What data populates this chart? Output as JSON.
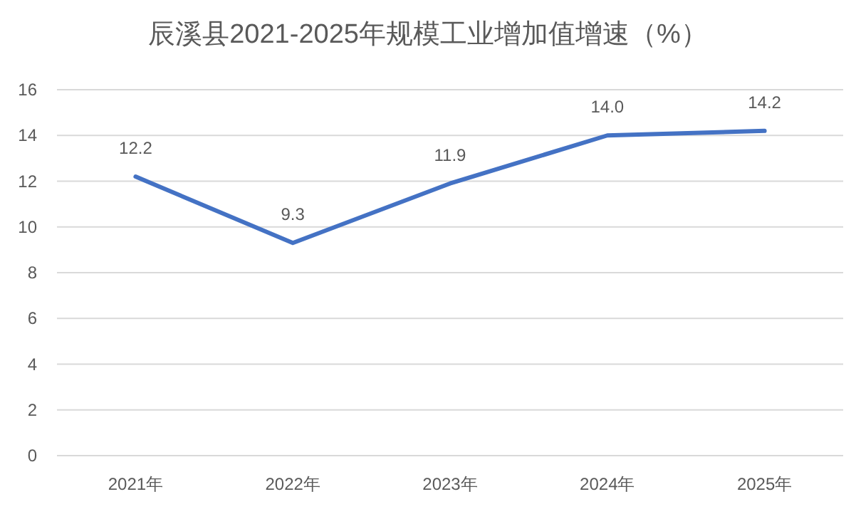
{
  "chart_data": {
    "type": "line",
    "title": "辰溪县2021-2025年规模工业增加值增速（%）",
    "categories": [
      "2021年",
      "2022年",
      "2023年",
      "2024年",
      "2025年"
    ],
    "values": [
      12.2,
      9.3,
      11.9,
      14.0,
      14.2
    ],
    "value_labels": [
      "12.2",
      "9.3",
      "11.9",
      "14.0",
      "14.2"
    ],
    "color": "#4472c4",
    "ylim": [
      0,
      16
    ],
    "yticks": [
      0,
      2,
      4,
      6,
      8,
      10,
      12,
      14,
      16
    ],
    "grid": "y"
  }
}
